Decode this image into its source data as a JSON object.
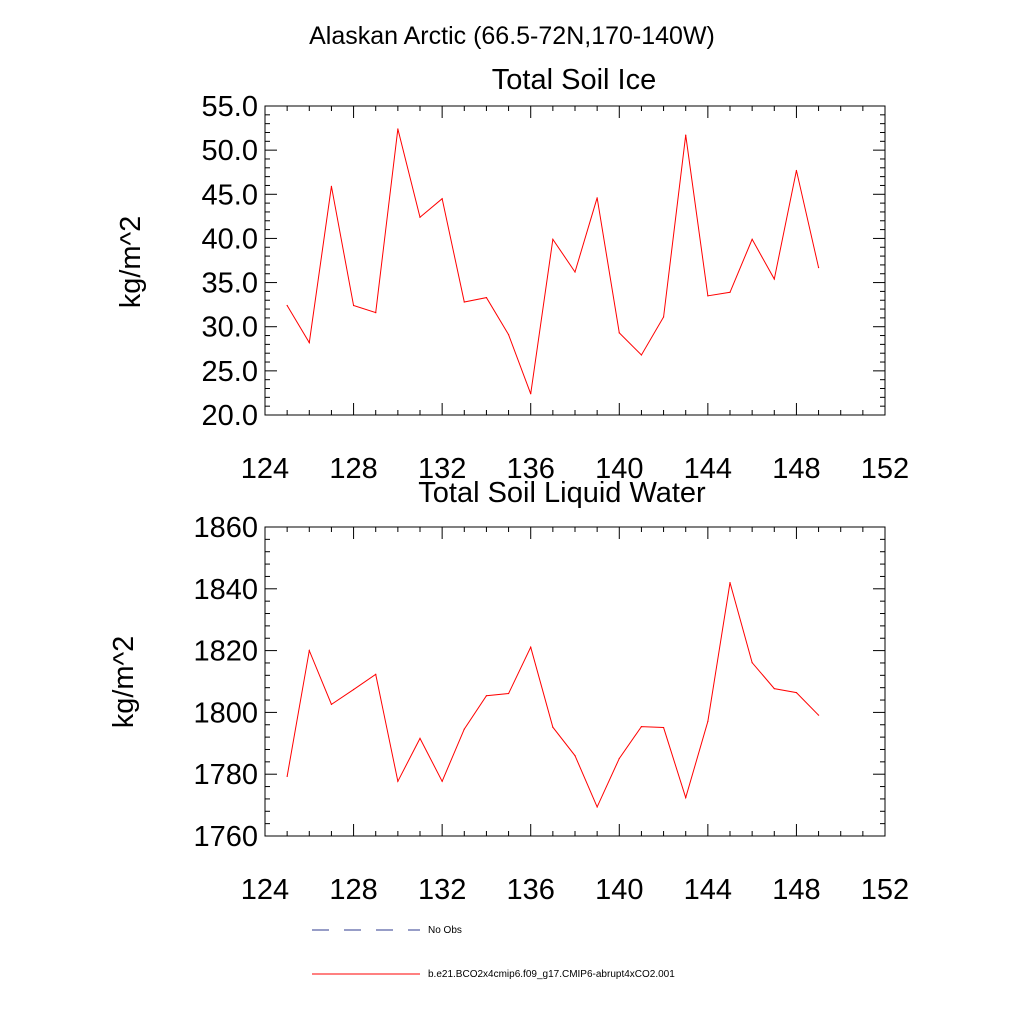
{
  "figure_title": "Alaskan Arctic (66.5-72N,170-140W)",
  "chart_data": [
    {
      "type": "line",
      "title": "Total Soil Ice",
      "xlabel": "",
      "ylabel": "kg/m^2",
      "xlim": [
        124,
        152
      ],
      "ylim": [
        20,
        55
      ],
      "xticks": [
        124,
        128,
        132,
        136,
        140,
        144,
        148,
        152
      ],
      "yticks": [
        20,
        25,
        30,
        35,
        40,
        45,
        50,
        55
      ],
      "ytick_labels": [
        "20.0",
        "25.0",
        "30.0",
        "35.0",
        "40.0",
        "45.0",
        "50.0",
        "55.0"
      ],
      "x": [
        125,
        126,
        127,
        128,
        129,
        130,
        131,
        132,
        133,
        134,
        135,
        136,
        137,
        138,
        139,
        140,
        141,
        142,
        143,
        144,
        145,
        146,
        147,
        148,
        149
      ],
      "series": [
        {
          "name": "b.e21.BCO2x4cmip6.f09_g17.CMIP6-abrupt4xCO2.001",
          "color": "#ff0000",
          "values": [
            32.4,
            28.2,
            45.9,
            32.4,
            31.6,
            52.4,
            42.4,
            44.5,
            32.8,
            33.3,
            29.1,
            22.4,
            39.9,
            36.2,
            44.6,
            29.3,
            26.8,
            31.1,
            51.7,
            33.5,
            33.9,
            39.9,
            35.4,
            47.7,
            36.7
          ]
        }
      ]
    },
    {
      "type": "line",
      "title": "Total Soil Liquid Water",
      "xlabel": "",
      "ylabel": "kg/m^2",
      "xlim": [
        124,
        152
      ],
      "ylim": [
        1760,
        1860
      ],
      "xticks": [
        124,
        128,
        132,
        136,
        140,
        144,
        148,
        152
      ],
      "yticks": [
        1760,
        1780,
        1800,
        1820,
        1840,
        1860
      ],
      "ytick_labels": [
        "1760",
        "1780",
        "1800",
        "1820",
        "1840",
        "1860"
      ],
      "x": [
        125,
        126,
        127,
        128,
        129,
        130,
        131,
        132,
        133,
        134,
        135,
        136,
        137,
        138,
        139,
        140,
        141,
        142,
        143,
        144,
        145,
        146,
        147,
        148,
        149
      ],
      "series": [
        {
          "name": "b.e21.BCO2x4cmip6.f09_g17.CMIP6-abrupt4xCO2.001",
          "color": "#ff0000",
          "values": [
            1779.3,
            1820.0,
            1802.6,
            1807.4,
            1812.3,
            1777.7,
            1791.6,
            1777.7,
            1794.6,
            1805.4,
            1806.1,
            1821.1,
            1795.2,
            1786.0,
            1769.4,
            1785.1,
            1795.4,
            1795.1,
            1772.4,
            1797.1,
            1842.0,
            1816.1,
            1807.7,
            1806.4,
            1799.1
          ]
        }
      ]
    }
  ],
  "legend": [
    {
      "label": "No Obs",
      "style": "dashed",
      "color": "#2f3b8f"
    },
    {
      "label": "b.e21.BCO2x4cmip6.f09_g17.CMIP6-abrupt4xCO2.001",
      "style": "solid",
      "color": "#ff0000"
    }
  ]
}
